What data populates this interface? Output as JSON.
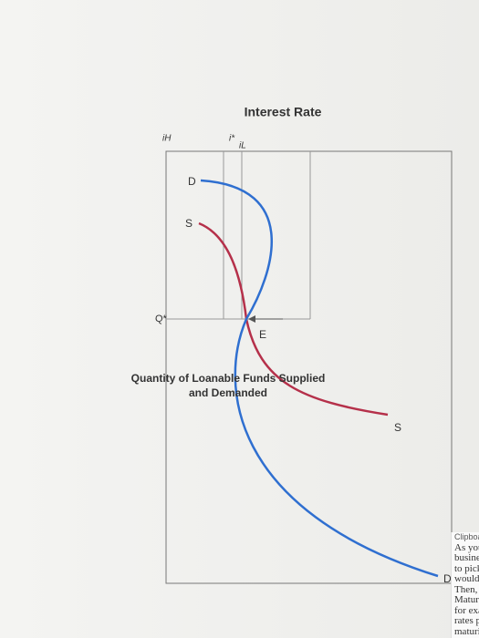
{
  "diagram": {
    "axis_labels": {
      "y": "Interest Rate",
      "x_line1": "Quantity of Loanable Funds Supplied",
      "x_line2": "and Demanded"
    },
    "rate_labels": {
      "high": "iH",
      "star": "i*",
      "low": "iL"
    },
    "curve_labels": {
      "demand_start": "D",
      "supply_start": "S",
      "supply_end": "S",
      "demand_end": "D",
      "equilibrium": "E",
      "quantity": "Q*"
    },
    "side_panel": {
      "header": "Clipboard",
      "lines": [
        "As you c",
        "business",
        "to pick a",
        "would pi",
        "Then, usi",
        "Maturitie",
        "for examp",
        "rates publ",
        "maturities"
      ]
    }
  }
}
